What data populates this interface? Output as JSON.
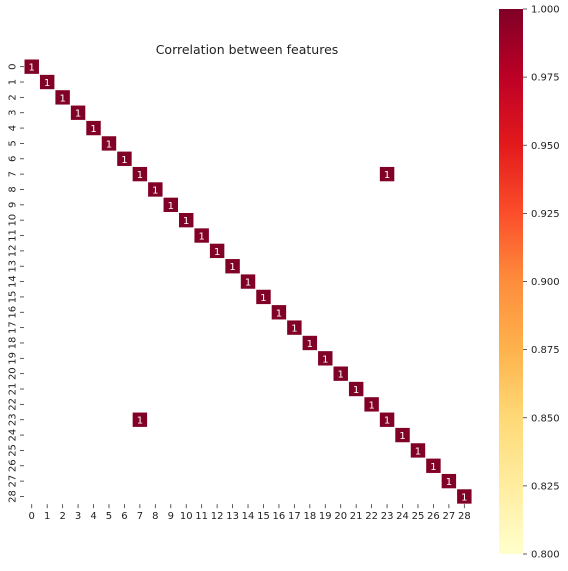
{
  "chart_data": {
    "type": "heatmap",
    "title": "Correlation between features",
    "xlabel": "",
    "ylabel": "",
    "x_categories": [
      "0",
      "1",
      "2",
      "3",
      "4",
      "5",
      "6",
      "7",
      "8",
      "9",
      "10",
      "11",
      "12",
      "13",
      "14",
      "15",
      "16",
      "17",
      "18",
      "19",
      "20",
      "21",
      "22",
      "23",
      "24",
      "25",
      "26",
      "27",
      "28"
    ],
    "y_categories": [
      "0",
      "1",
      "2",
      "3",
      "4",
      "5",
      "6",
      "7",
      "8",
      "9",
      "10",
      "11",
      "12",
      "13",
      "14",
      "15",
      "16",
      "17",
      "18",
      "19",
      "20",
      "21",
      "22",
      "23",
      "24",
      "25",
      "26",
      "27",
      "28"
    ],
    "cells": [
      {
        "row": 0,
        "col": 0,
        "value": 1,
        "label": "1"
      },
      {
        "row": 1,
        "col": 1,
        "value": 1,
        "label": "1"
      },
      {
        "row": 2,
        "col": 2,
        "value": 1,
        "label": "1"
      },
      {
        "row": 3,
        "col": 3,
        "value": 1,
        "label": "1"
      },
      {
        "row": 4,
        "col": 4,
        "value": 1,
        "label": "1"
      },
      {
        "row": 5,
        "col": 5,
        "value": 1,
        "label": "1"
      },
      {
        "row": 6,
        "col": 6,
        "value": 1,
        "label": "1"
      },
      {
        "row": 7,
        "col": 7,
        "value": 1,
        "label": "1"
      },
      {
        "row": 7,
        "col": 23,
        "value": 1,
        "label": "1"
      },
      {
        "row": 8,
        "col": 8,
        "value": 1,
        "label": "1"
      },
      {
        "row": 9,
        "col": 9,
        "value": 1,
        "label": "1"
      },
      {
        "row": 10,
        "col": 10,
        "value": 1,
        "label": "1"
      },
      {
        "row": 11,
        "col": 11,
        "value": 1,
        "label": "1"
      },
      {
        "row": 12,
        "col": 12,
        "value": 1,
        "label": "1"
      },
      {
        "row": 13,
        "col": 13,
        "value": 1,
        "label": "1"
      },
      {
        "row": 14,
        "col": 14,
        "value": 1,
        "label": "1"
      },
      {
        "row": 15,
        "col": 15,
        "value": 1,
        "label": "1"
      },
      {
        "row": 16,
        "col": 16,
        "value": 1,
        "label": "1"
      },
      {
        "row": 17,
        "col": 17,
        "value": 1,
        "label": "1"
      },
      {
        "row": 18,
        "col": 18,
        "value": 1,
        "label": "1"
      },
      {
        "row": 19,
        "col": 19,
        "value": 1,
        "label": "1"
      },
      {
        "row": 20,
        "col": 20,
        "value": 1,
        "label": "1"
      },
      {
        "row": 21,
        "col": 21,
        "value": 1,
        "label": "1"
      },
      {
        "row": 22,
        "col": 22,
        "value": 1,
        "label": "1"
      },
      {
        "row": 23,
        "col": 7,
        "value": 1,
        "label": "1"
      },
      {
        "row": 23,
        "col": 23,
        "value": 1,
        "label": "1"
      },
      {
        "row": 24,
        "col": 24,
        "value": 1,
        "label": "1"
      },
      {
        "row": 25,
        "col": 25,
        "value": 1,
        "label": "1"
      },
      {
        "row": 26,
        "col": 26,
        "value": 1,
        "label": "1"
      },
      {
        "row": 27,
        "col": 27,
        "value": 1,
        "label": "1"
      },
      {
        "row": 28,
        "col": 28,
        "value": 1,
        "label": "1"
      }
    ],
    "colorbar": {
      "vmin": 0.8,
      "vmax": 1.0,
      "ticks": [
        "0.800",
        "0.825",
        "0.850",
        "0.875",
        "0.900",
        "0.925",
        "0.950",
        "0.975",
        "1.000"
      ],
      "colormap": "YlOrRd"
    },
    "cell_color": "#800026",
    "cell_label_color": "#ffffff",
    "grid": false,
    "legend": "colorbar-right"
  }
}
